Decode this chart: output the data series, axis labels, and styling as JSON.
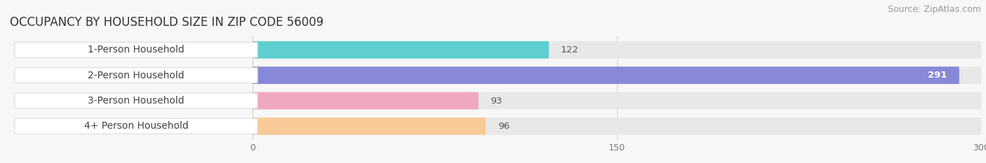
{
  "title": "OCCUPANCY BY HOUSEHOLD SIZE IN ZIP CODE 56009",
  "source": "Source: ZipAtlas.com",
  "categories": [
    "1-Person Household",
    "2-Person Household",
    "3-Person Household",
    "4+ Person Household"
  ],
  "values": [
    122,
    291,
    93,
    96
  ],
  "bar_colors": [
    "#5ecece",
    "#8888d8",
    "#f0a8be",
    "#f8ca98"
  ],
  "xlim": [
    -100,
    300
  ],
  "xticks": [
    0,
    150,
    300
  ],
  "background_color": "#f7f7f7",
  "bar_bg_color": "#e8e8e8",
  "title_fontsize": 12,
  "source_fontsize": 9,
  "label_fontsize": 10,
  "value_fontsize": 9.5
}
